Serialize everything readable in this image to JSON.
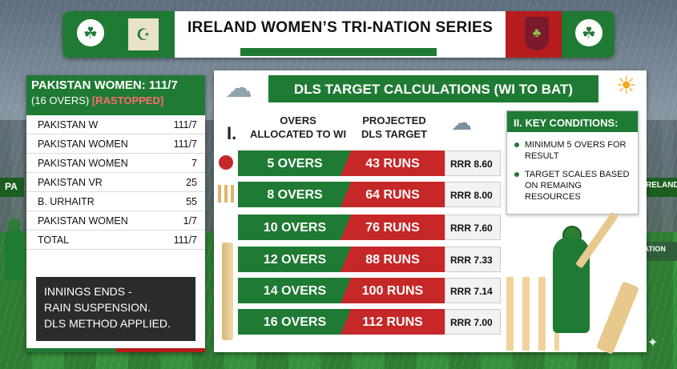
{
  "header": {
    "title": "IRELAND WOMEN’S TRI-NATION SERIES"
  },
  "scorecard": {
    "title": "PAKISTAN WOMEN: 111/7",
    "subtitle_overs": "(16 OVERS)",
    "subtitle_status": "[RASTOPPED]",
    "rows": [
      {
        "name": "PAKISTAN W",
        "value": "111/7"
      },
      {
        "name": "PAKISTAN WOMEN",
        "value": "111/7"
      },
      {
        "name": "PAKISTAN WOMEN",
        "value": "7"
      },
      {
        "name": "PAKISTAN VR",
        "value": "25"
      },
      {
        "name": "B. URHAITR",
        "value": "55"
      },
      {
        "name": "PAKISTAN WOMEN",
        "value": "1/7"
      },
      {
        "name": "TOTAL",
        "value": "111/7"
      }
    ],
    "notes": [
      "INNINGS ENDS -",
      "RAIN SUSPENSION.",
      "DLS METHOD APPLIED."
    ]
  },
  "dls": {
    "title": "DLS TARGET CALCULATIONS (WI TO BAT)",
    "section_numeral": "I.",
    "col_overs": [
      "OVERS",
      "ALLOCATED TO WI"
    ],
    "col_target": [
      "PROJECTED",
      "DLS TARGET"
    ],
    "rows": [
      {
        "overs": "5 OVERS",
        "target": "43 RUNS",
        "rrr": "RRR 8.60"
      },
      {
        "overs": "8 OVERS",
        "target": "64 RUNS",
        "rrr": "RRR 8.00"
      },
      {
        "overs": "10 OVERS",
        "target": "76 RUNS",
        "rrr": "RRR 7.60"
      },
      {
        "overs": "12 OVERS",
        "target": "88 RUNS",
        "rrr": "RRR 7.33"
      },
      {
        "overs": "14 OVERS",
        "target": "100 RUNS",
        "rrr": "RRR 7.14"
      },
      {
        "overs": "16 OVERS",
        "target": "112 RUNS",
        "rrr": "RRR 7.00"
      }
    ]
  },
  "key_conditions": {
    "title": "II. KEY CONDITIONS:",
    "items": [
      "MINIMUM 5 OVERS FOR RESULT",
      "TARGET SCALES BASED ON REMAING RESOURCES"
    ]
  },
  "banners": {
    "left": "PA",
    "right_top": "RELAND",
    "right_mid": "IRILIATION"
  },
  "colors": {
    "green": "#1f7a34",
    "red": "#c62828",
    "white": "#ffffff"
  },
  "icons": [
    "shamrock-logo-icon",
    "pakistan-crest-icon",
    "west-indies-crest-icon",
    "rain-cloud-icon",
    "sun-cloud-icon",
    "cricket-ball-icon",
    "stumps-icon",
    "cricket-bat-icon"
  ]
}
